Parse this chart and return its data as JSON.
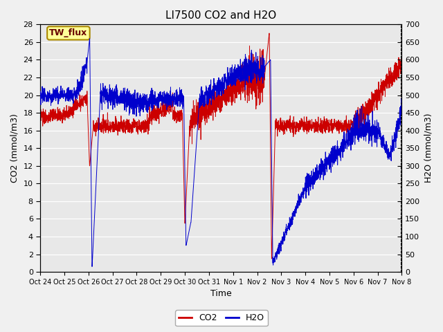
{
  "title": "LI7500 CO2 and H2O",
  "xlabel": "Time",
  "ylabel_left": "CO2 (mmol/m3)",
  "ylabel_right": "H2O (mmol/m3)",
  "ylim_left": [
    0,
    28
  ],
  "ylim_right": [
    0,
    700
  ],
  "yticks_left": [
    0,
    2,
    4,
    6,
    8,
    10,
    12,
    14,
    16,
    18,
    20,
    22,
    24,
    26,
    28
  ],
  "yticks_right": [
    0,
    50,
    100,
    150,
    200,
    250,
    300,
    350,
    400,
    450,
    500,
    550,
    600,
    650,
    700
  ],
  "bg_color": "#e8e8e8",
  "fig_bg_color": "#f0f0f0",
  "co2_color": "#cc0000",
  "h2o_color": "#0000cc",
  "legend_label_co2": "CO2",
  "legend_label_h2o": "H2O",
  "annotation_text": "TW_flux",
  "annotation_bg": "#ffff99",
  "annotation_border": "#aa8800",
  "grid_color": "#ffffff",
  "title_fontsize": 11,
  "label_fontsize": 9,
  "tick_fontsize": 8,
  "x_tick_labels": [
    "Oct 24",
    "Oct 25",
    "Oct 26",
    "Oct 27",
    "Oct 28",
    "Oct 29",
    "Oct 30",
    "Oct 31",
    "Nov 1",
    "Nov 2",
    "Nov 3",
    "Nov 4",
    "Nov 5",
    "Nov 6",
    "Nov 7",
    "Nov 8"
  ],
  "n_days": 15
}
